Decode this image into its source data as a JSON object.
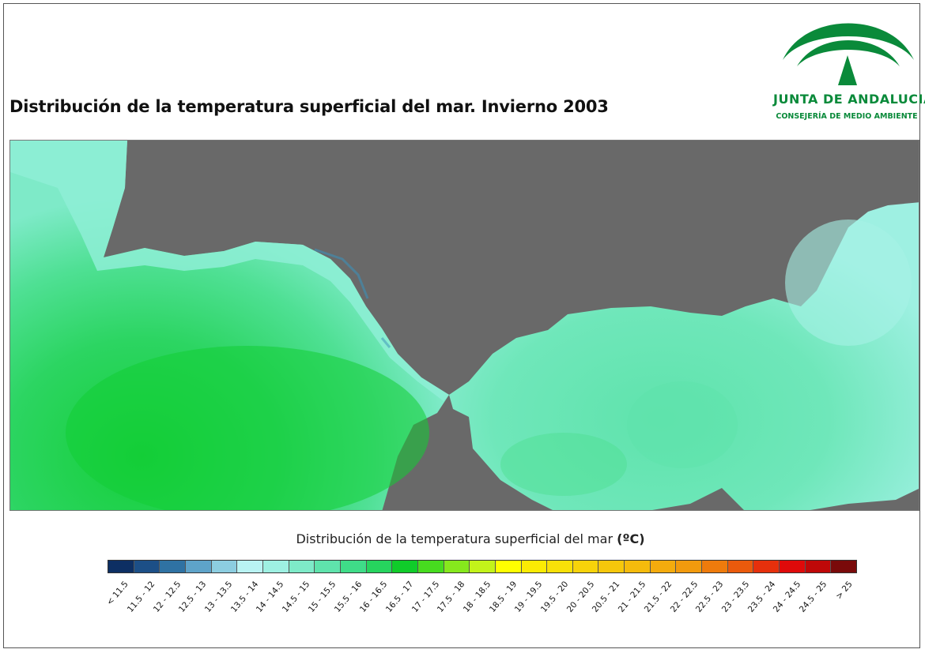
{
  "title": "Distribución de la temperatura superficial del mar. Invierno 2003",
  "logo": {
    "name": "JUNTA DE ANDALUCIA",
    "subtitle": "CONSEJERÍA DE MEDIO AMBIENTE",
    "color": "#0a8a3a"
  },
  "map": {
    "land_color": "#696969",
    "note": ""
  },
  "legend": {
    "title": "Distribución de la temperatura superficial del mar",
    "unit": "(ºC)",
    "classes": [
      {
        "label": "< 11.5",
        "color": "#0d2f63"
      },
      {
        "label": "11.5 - 12",
        "color": "#1c4f87"
      },
      {
        "label": "12 - 12.5",
        "color": "#2f72a3"
      },
      {
        "label": "12.5 - 13",
        "color": "#5ea3c9"
      },
      {
        "label": "13 - 13.5",
        "color": "#8ccde0"
      },
      {
        "label": "13.5 - 14",
        "color": "#b9f3f3"
      },
      {
        "label": "14 - 14.5",
        "color": "#9ef0e2"
      },
      {
        "label": "14.5 - 15",
        "color": "#7eeac8"
      },
      {
        "label": "15 - 15.5",
        "color": "#5fe3ac"
      },
      {
        "label": "15.5 - 16",
        "color": "#3fdc88"
      },
      {
        "label": "16 - 16.5",
        "color": "#26d45e"
      },
      {
        "label": "16.5 - 17",
        "color": "#10cc2a"
      },
      {
        "label": "17 - 17.5",
        "color": "#47dc1f"
      },
      {
        "label": "17.5 - 18",
        "color": "#86e81d"
      },
      {
        "label": "18 - 18.5",
        "color": "#c3f31a"
      },
      {
        "label": "18.5 - 19",
        "color": "#ffff00"
      },
      {
        "label": "19 - 19.5",
        "color": "#fbeb04"
      },
      {
        "label": "19.5 - 20",
        "color": "#f8e008"
      },
      {
        "label": "20 - 20.5",
        "color": "#f7d30a"
      },
      {
        "label": "20.5 - 21",
        "color": "#f6c70b"
      },
      {
        "label": "21 - 21.5",
        "color": "#f5bb0c"
      },
      {
        "label": "21.5 - 22",
        "color": "#f4ab0d"
      },
      {
        "label": "22 - 22.5",
        "color": "#f29a0d"
      },
      {
        "label": "22.5 - 23",
        "color": "#ee7b0c"
      },
      {
        "label": "23 - 23.5",
        "color": "#ea5a0c"
      },
      {
        "label": "23.5 - 24",
        "color": "#e6300c"
      },
      {
        "label": "24 - 24.5",
        "color": "#df0a0a"
      },
      {
        "label": "24.5 - 25",
        "color": "#bf0808"
      },
      {
        "label": "> 25",
        "color": "#7a0a0a"
      }
    ]
  }
}
